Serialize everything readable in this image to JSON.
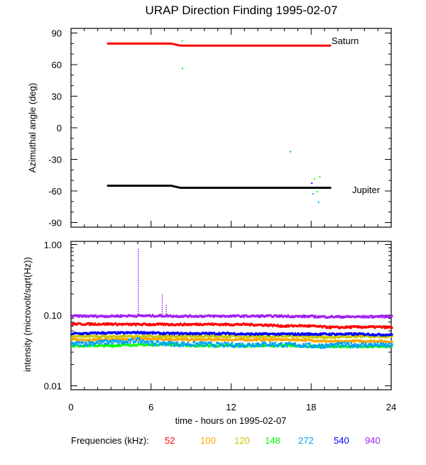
{
  "chart_data": [
    {
      "type": "line",
      "title": "URAP Direction Finding  1995-02-07",
      "ylabel": "Azimuthal angle (deg)",
      "ylim": [
        -90,
        90
      ],
      "yticks": [
        "90",
        "60",
        "30",
        "0",
        "-30",
        "-60",
        "-90"
      ],
      "series": [
        {
          "name": "Saturn",
          "color": "#ff0000",
          "x": [
            2.7,
            7.5,
            8.2,
            19.5
          ],
          "y": [
            80,
            80,
            78,
            78
          ]
        },
        {
          "name": "Jupiter",
          "color": "#000000",
          "x": [
            2.7,
            7.5,
            8.2,
            19.5
          ],
          "y": [
            -55,
            -55,
            -57,
            -57
          ]
        }
      ],
      "scatter": [
        {
          "x": 8.3,
          "y": 83,
          "color": "#00ff00"
        },
        {
          "x": 8.3,
          "y": 57,
          "color": "#00ff00"
        },
        {
          "x": 16.4,
          "y": -22,
          "color": "#00a0ff"
        },
        {
          "x": 18.2,
          "y": -48,
          "color": "#00ff00"
        },
        {
          "x": 18,
          "y": -52,
          "color": "#0000ff"
        },
        {
          "x": 18.4,
          "y": -60,
          "color": "#00ff00"
        },
        {
          "x": 18.5,
          "y": -70,
          "color": "#00a0ff"
        },
        {
          "x": 18.1,
          "y": -62,
          "color": "#00a0ff"
        },
        {
          "x": 18.6,
          "y": -46,
          "color": "#00ff00"
        }
      ]
    },
    {
      "type": "scatter",
      "ylabel": "intensity (microvolt/sqrt(Hz))",
      "xlabel": "time - hours on 1995-02-07",
      "xlim": [
        0,
        24
      ],
      "ylim": [
        0.01,
        1
      ],
      "yscale": "log",
      "yticks": [
        "1.00",
        "0.10",
        "0.01"
      ],
      "xticks": [
        "0",
        "6",
        "12",
        "18",
        "24"
      ],
      "legend_title": "Frequencies (kHz):",
      "series": [
        {
          "name": "52",
          "color": "#ff0000",
          "levels": [
            0.075,
            0.075,
            0.075,
            0.075,
            0.074,
            0.074,
            0.074,
            0.074,
            0.074,
            0.074,
            0.075,
            0.074,
            0.074,
            0.074,
            0.073,
            0.072,
            0.07,
            0.071,
            0.07,
            0.068,
            0.067,
            0.068,
            0.068,
            0.068,
            0.067
          ]
        },
        {
          "name": "100",
          "color": "#ffa500",
          "levels": [
            0.045,
            0.045,
            0.045,
            0.045,
            0.045,
            0.046,
            0.046,
            0.046,
            0.045,
            0.045,
            0.045,
            0.045,
            0.045,
            0.045,
            0.045,
            0.045,
            0.045,
            0.045,
            0.044,
            0.043,
            0.042,
            0.043,
            0.043,
            0.043,
            0.042
          ]
        },
        {
          "name": "120",
          "color": "#c8c800",
          "levels": [
            0.05,
            0.05,
            0.05,
            0.05,
            0.05,
            0.05,
            0.05,
            0.05,
            0.05,
            0.05,
            0.05,
            0.05,
            0.05,
            0.05,
            0.05,
            0.05,
            0.05,
            0.05,
            0.049,
            0.049,
            0.049,
            0.05,
            0.05,
            0.05,
            0.05
          ]
        },
        {
          "name": "148",
          "color": "#00ff00",
          "levels": [
            0.037,
            0.037,
            0.037,
            0.037,
            0.038,
            0.038,
            0.038,
            0.039,
            0.038,
            0.037,
            0.037,
            0.037,
            0.037,
            0.037,
            0.037,
            0.037,
            0.037,
            0.037,
            0.036,
            0.036,
            0.036,
            0.036,
            0.036,
            0.036,
            0.036
          ]
        },
        {
          "name": "272",
          "color": "#00a0ff",
          "levels": [
            0.039,
            0.04,
            0.041,
            0.042,
            0.041,
            0.045,
            0.04,
            0.04,
            0.039,
            0.039,
            0.039,
            0.038,
            0.038,
            0.038,
            0.039,
            0.039,
            0.038,
            0.038,
            0.037,
            0.037,
            0.038,
            0.038,
            0.038,
            0.038,
            0.037
          ]
        },
        {
          "name": "540",
          "color": "#0000ff",
          "levels": [
            0.055,
            0.055,
            0.056,
            0.056,
            0.056,
            0.057,
            0.056,
            0.055,
            0.055,
            0.055,
            0.055,
            0.055,
            0.055,
            0.054,
            0.054,
            0.054,
            0.054,
            0.054,
            0.054,
            0.054,
            0.054,
            0.054,
            0.054,
            0.053,
            0.053
          ]
        },
        {
          "name": "940",
          "color": "#a020f0",
          "levels": [
            0.097,
            0.097,
            0.097,
            0.097,
            0.098,
            0.098,
            0.098,
            0.098,
            0.097,
            0.097,
            0.097,
            0.097,
            0.097,
            0.097,
            0.097,
            0.097,
            0.097,
            0.096,
            0.096,
            0.095,
            0.095,
            0.095,
            0.095,
            0.096,
            0.096
          ]
        }
      ],
      "spikes": [
        {
          "x": 5.0,
          "peak": 0.9,
          "color": "#a020f0"
        },
        {
          "x": 6.8,
          "peak": 0.21,
          "color": "#a020f0"
        },
        {
          "x": 7.1,
          "peak": 0.15,
          "color": "#a020f0"
        },
        {
          "x": 5.1,
          "peak": 0.1,
          "color": "#0000ff"
        }
      ]
    }
  ]
}
